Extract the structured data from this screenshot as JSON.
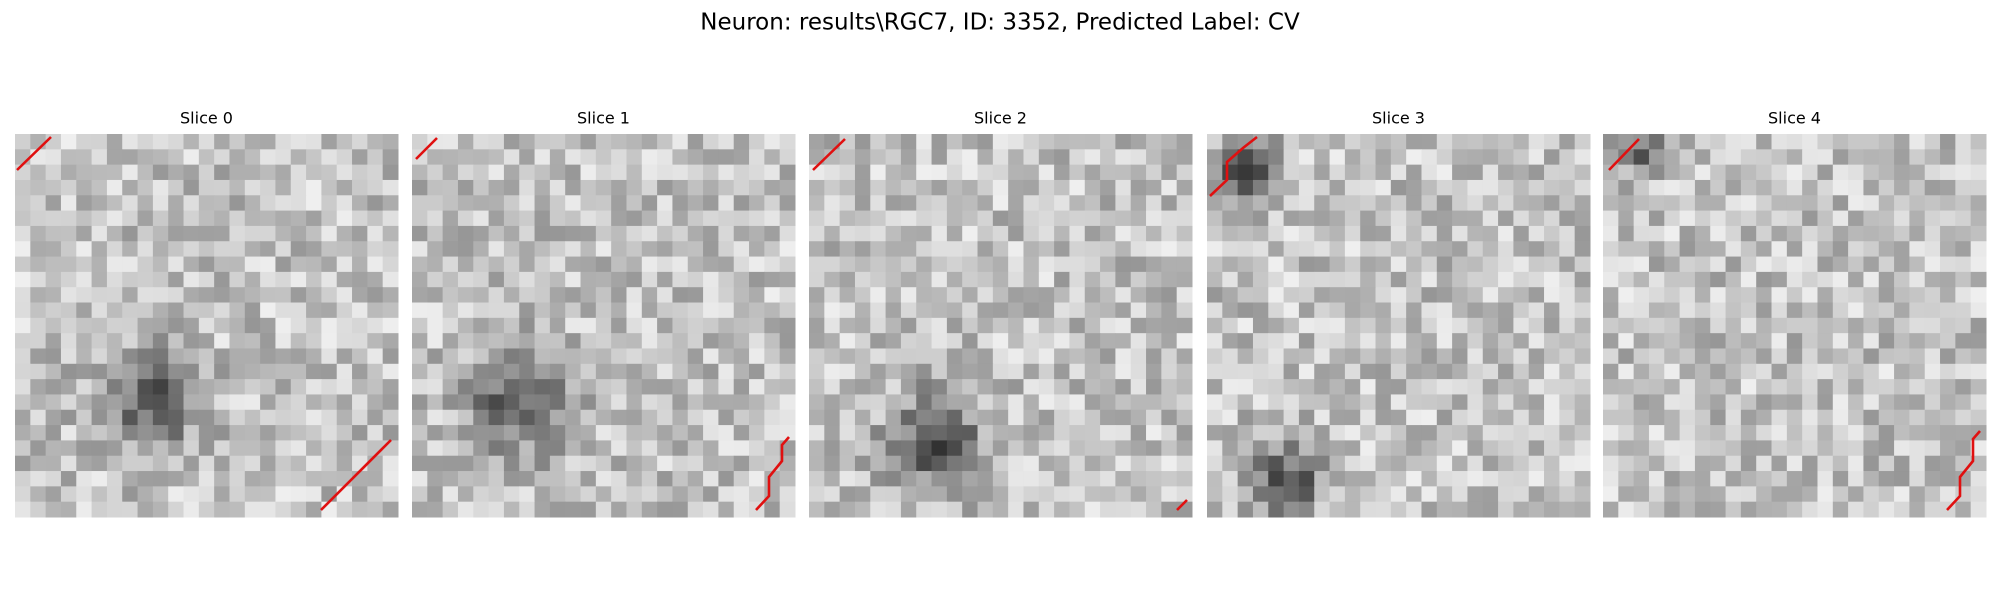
{
  "figure": {
    "title": "Neuron: results\\RGC7, ID: 3352, Predicted Label: CV",
    "panels": [
      {
        "title": "Slice 0"
      },
      {
        "title": "Slice 1"
      },
      {
        "title": "Slice 2"
      },
      {
        "title": "Slice 3"
      },
      {
        "title": "Slice 4"
      }
    ]
  }
}
